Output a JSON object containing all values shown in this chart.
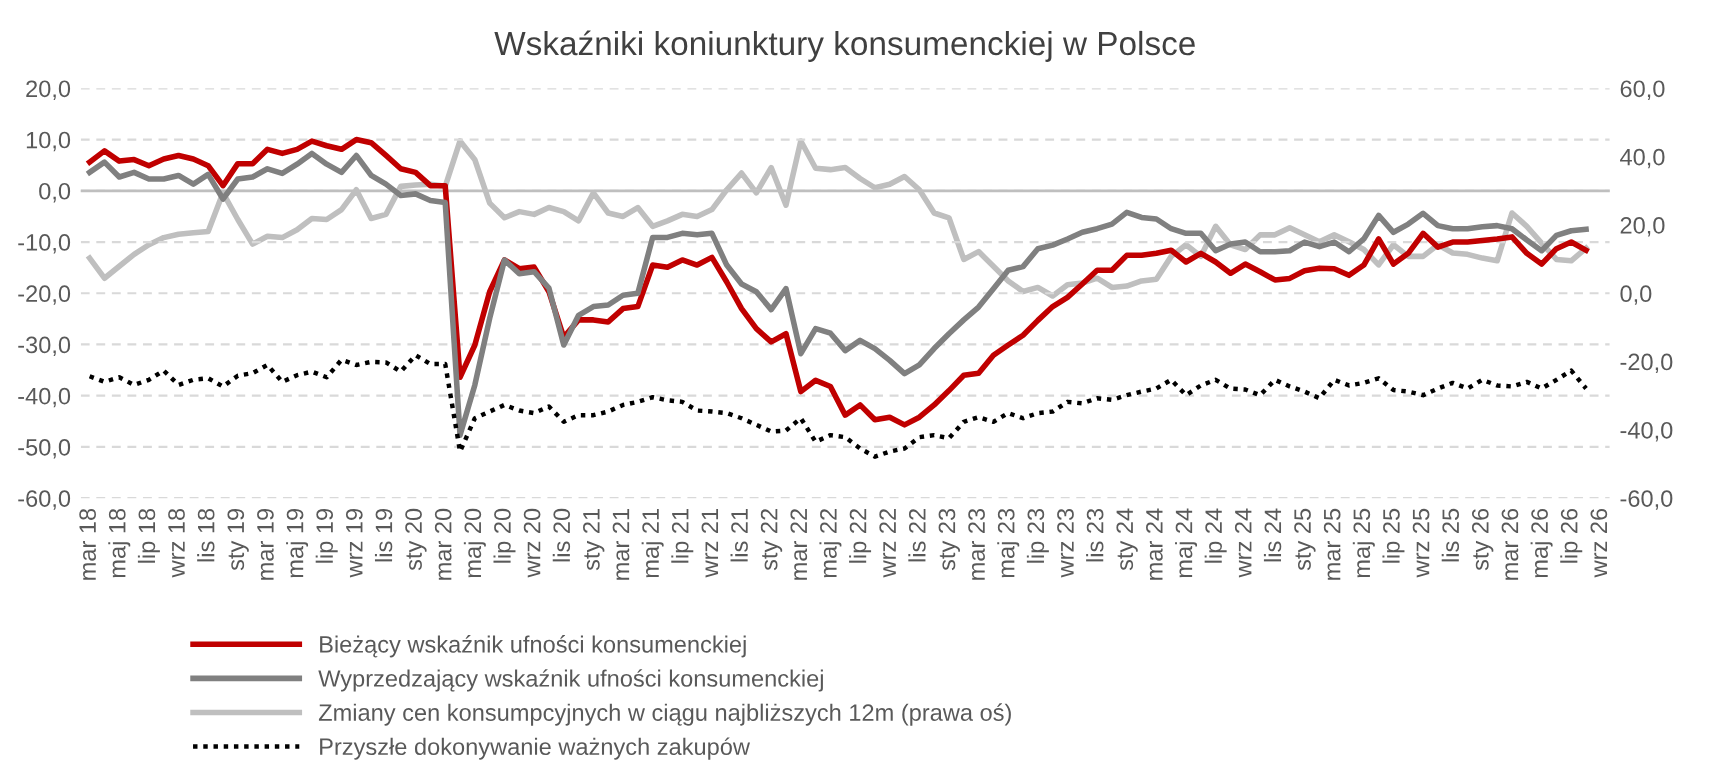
{
  "chart_data": {
    "type": "line",
    "title": "Wskaźniki koniunktury konsumenckiej w Polsce",
    "categories": [
      "mar 18",
      null,
      "maj 18",
      null,
      "lip 18",
      null,
      "wrz 18",
      null,
      "lis 18",
      null,
      "sty 19",
      null,
      "mar 19",
      null,
      "maj 19",
      null,
      "lip 19",
      null,
      "wrz 19",
      null,
      "lis 19",
      null,
      "sty 20",
      null,
      "mar 20",
      null,
      "maj 20",
      null,
      "lip 20",
      null,
      "wrz 20",
      null,
      "lis 20",
      null,
      "sty 21",
      null,
      "mar 21",
      null,
      "maj 21",
      null,
      "lip 21",
      null,
      "wrz 21",
      null,
      "lis 21",
      null,
      "sty 22",
      null,
      "mar 22",
      null,
      "maj 22",
      null,
      "lip 22",
      null,
      "wrz 22",
      null,
      "lis 22",
      null,
      "sty 23",
      null,
      "mar 23",
      null,
      "maj 23",
      null,
      "lip 23",
      null,
      "wrz 23",
      null,
      "lis 23",
      null,
      "sty 24",
      null,
      "mar 24",
      null,
      "maj 24",
      null,
      "lip 24",
      null,
      "wrz 24",
      null,
      "lis 24",
      null,
      "sty 25",
      null,
      "mar 25",
      null,
      "maj 25",
      null,
      "lip 25",
      null,
      "wrz 25",
      null,
      "lis 25",
      null,
      "sty 26",
      null,
      "mar 26",
      null,
      "maj 26",
      null,
      "lip 26",
      null,
      "wrz 26"
    ],
    "series": [
      {
        "name": "Bieżący wskaźnik ufności konsumenckiej",
        "color": "#c00000",
        "values": [
          5.6,
          7.8,
          5.8,
          6.1,
          4.9,
          6.2,
          6.9,
          6.2,
          4.9,
          1.0,
          5.3,
          5.3,
          8.1,
          7.3,
          8.1,
          9.7,
          8.8,
          8.1,
          10.0,
          9.4,
          6.9,
          4.3,
          3.6,
          1.0,
          1.0,
          -36.4,
          -30.1,
          -19.7,
          -13.5,
          -15.2,
          -14.9,
          -19.7,
          -28.6,
          -25.2,
          -25.2,
          -25.6,
          -23.0,
          -22.6,
          -14.5,
          -14.9,
          -13.5,
          -14.5,
          -13.0,
          -17.8,
          -23.0,
          -26.9,
          -29.5,
          -27.9,
          -39.2,
          -37.0,
          -38.2,
          -43.8,
          -41.8,
          -44.7,
          -44.2,
          -45.7,
          -44.2,
          -41.8,
          -39.0,
          -36.0,
          -35.6,
          -32.1,
          -30.1,
          -28.2,
          -25.3,
          -22.6,
          -20.8,
          -18.2,
          -15.5,
          -15.5,
          -12.6,
          -12.6,
          -12.2,
          -11.6,
          -13.9,
          -12.2,
          -13.9,
          -16.1,
          -14.3,
          -15.8,
          -17.4,
          -17.1,
          -15.6,
          -15.1,
          -15.2,
          -16.5,
          -14.5,
          -9.4,
          -14.3,
          -12.2,
          -8.3,
          -11.0,
          -10.0,
          -10.0,
          -9.7,
          -9.4,
          -9.0,
          -12.2,
          -14.3,
          -11.3,
          -10.0,
          -11.6,
          null
        ]
      },
      {
        "name": "Wyprzedzający wskaźnik ufności konsumenckiej",
        "color": "#808080",
        "values": [
          3.6,
          5.6,
          2.7,
          3.6,
          2.3,
          2.3,
          3.0,
          1.3,
          3.2,
          -1.6,
          2.3,
          2.7,
          4.3,
          3.4,
          5.2,
          7.3,
          5.2,
          3.6,
          6.9,
          3.0,
          1.3,
          -0.9,
          -0.6,
          -1.9,
          -2.3,
          -47.7,
          -37.9,
          -24.9,
          -13.5,
          -16.2,
          -15.8,
          -19.0,
          -30.1,
          -24.3,
          -22.6,
          -22.3,
          -20.4,
          -20.0,
          -9.1,
          -9.1,
          -8.3,
          -8.6,
          -8.3,
          -14.5,
          -18.2,
          -19.7,
          -23.2,
          -19.1,
          -31.8,
          -26.9,
          -27.8,
          -31.2,
          -29.2,
          -30.8,
          -33.1,
          -35.7,
          -34.0,
          -30.8,
          -27.9,
          -25.2,
          -22.7,
          -19.1,
          -15.5,
          -14.8,
          -11.3,
          -10.6,
          -9.4,
          -8.1,
          -7.4,
          -6.5,
          -4.2,
          -5.2,
          -5.5,
          -7.4,
          -8.3,
          -8.3,
          -11.7,
          -10.4,
          -10.0,
          -11.9,
          -11.9,
          -11.7,
          -10.0,
          -10.9,
          -10.0,
          -11.9,
          -9.4,
          -4.8,
          -8.1,
          -6.5,
          -4.4,
          -6.8,
          -7.4,
          -7.4,
          -7.0,
          -6.8,
          -7.4,
          -9.6,
          -11.7,
          -8.7,
          -7.8,
          -7.5,
          null
        ]
      },
      {
        "name": "Zmiany cen konsumpcyjnych w ciągu najbliższych 12m (prawa oś)",
        "color": "#bfbfbf",
        "axis": "y2",
        "values": [
          10.3,
          4.4,
          7.9,
          11.4,
          14.2,
          16.3,
          17.3,
          17.7,
          18.1,
          29.4,
          21.6,
          14.4,
          16.7,
          16.3,
          18.6,
          21.9,
          21.6,
          24.5,
          30.3,
          21.9,
          23.1,
          31.3,
          31.7,
          31.9,
          31.3,
          44.6,
          39.1,
          26.4,
          22.1,
          23.9,
          23.1,
          25.1,
          23.9,
          21.2,
          29.4,
          23.5,
          22.5,
          25.1,
          19.6,
          21.2,
          23.1,
          22.5,
          24.5,
          30.3,
          35.2,
          29.4,
          36.8,
          25.8,
          44.6,
          36.6,
          36.2,
          36.8,
          33.6,
          30.9,
          31.9,
          34.2,
          30.3,
          23.5,
          22.1,
          9.9,
          12.2,
          7.9,
          3.6,
          0.5,
          1.7,
          -0.8,
          2.5,
          3.0,
          4.4,
          1.7,
          2.1,
          3.6,
          4.1,
          10.8,
          14.2,
          10.8,
          19.6,
          14.2,
          12.8,
          17.1,
          17.1,
          19.2,
          17.1,
          15.1,
          17.1,
          15.1,
          12.8,
          8.3,
          14.2,
          10.8,
          10.8,
          14.2,
          11.8,
          11.4,
          10.3,
          9.5,
          23.5,
          19.6,
          14.7,
          9.9,
          9.5,
          13.2,
          null
        ]
      },
      {
        "name": "Przyszłe dokonywanie ważnych zakupów",
        "color": "#000000",
        "line_style": "dotted",
        "values": [
          -36.2,
          -37.3,
          -36.4,
          -37.9,
          -36.9,
          -35.1,
          -37.9,
          -36.9,
          -36.6,
          -38.2,
          -36.1,
          -35.6,
          -34.0,
          -37.3,
          -36.0,
          -35.3,
          -36.4,
          -33.0,
          -34.0,
          -33.4,
          -33.5,
          -35.3,
          -32.1,
          -33.8,
          -33.8,
          -50.9,
          -44.4,
          -43.1,
          -41.8,
          -42.9,
          -43.4,
          -42.1,
          -45.1,
          -43.8,
          -43.8,
          -43.1,
          -41.8,
          -41.2,
          -40.3,
          -40.9,
          -41.2,
          -42.9,
          -43.1,
          -43.4,
          -44.4,
          -45.7,
          -47.0,
          -46.8,
          -44.4,
          -49.0,
          -47.7,
          -48.1,
          -50.3,
          -51.9,
          -50.9,
          -50.3,
          -48.1,
          -47.7,
          -48.3,
          -45.1,
          -44.2,
          -45.1,
          -43.4,
          -44.4,
          -43.4,
          -43.1,
          -41.2,
          -41.5,
          -40.5,
          -40.8,
          -39.9,
          -39.2,
          -38.6,
          -36.9,
          -39.9,
          -38.0,
          -36.9,
          -38.6,
          -38.8,
          -39.9,
          -36.9,
          -38.2,
          -39.2,
          -40.5,
          -36.9,
          -38.0,
          -37.5,
          -36.6,
          -38.9,
          -39.2,
          -39.9,
          -38.6,
          -37.5,
          -38.6,
          -36.9,
          -38.0,
          -38.2,
          -37.3,
          -38.6,
          -36.9,
          -35.1,
          -38.6,
          null
        ]
      }
    ],
    "ylim": [
      -60,
      20
    ],
    "yticks": [
      {
        "value": -60,
        "label": "-60,0"
      },
      {
        "value": -50,
        "label": "-50,0"
      },
      {
        "value": -40,
        "label": "-40,0"
      },
      {
        "value": -30,
        "label": "-30,0"
      },
      {
        "value": -20,
        "label": "-20,0"
      },
      {
        "value": -10,
        "label": "-10,0"
      },
      {
        "value": 0,
        "label": "0,0"
      },
      {
        "value": 10,
        "label": "10,0"
      },
      {
        "value": 20,
        "label": "20,0"
      }
    ],
    "y2lim": [
      -60,
      60
    ],
    "y2ticks": [
      {
        "value": -60,
        "label": "-60,0"
      },
      {
        "value": -40,
        "label": "-40,0"
      },
      {
        "value": -20,
        "label": "-20,0"
      },
      {
        "value": 0,
        "label": "0,0"
      },
      {
        "value": 20,
        "label": "20,0"
      },
      {
        "value": 40,
        "label": "40,0"
      },
      {
        "value": 60,
        "label": "60,0"
      }
    ],
    "grid": "y",
    "legend": "bottom",
    "marker": "none",
    "line_style": "solid"
  }
}
